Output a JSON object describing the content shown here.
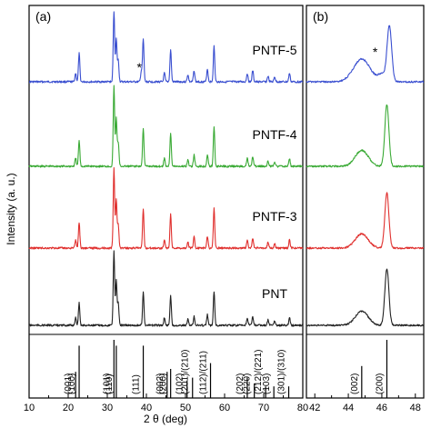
{
  "chart_data": [
    {
      "panel": "(a)",
      "type": "line",
      "xlabel": "2 θ (deg)",
      "ylabel": "Intensity (a. u.)",
      "xlim": [
        10,
        80
      ],
      "xticks": [
        10,
        20,
        30,
        40,
        50,
        60,
        70,
        80
      ],
      "series": [
        {
          "name": "PNTF-5",
          "color": "#3a4fd0",
          "peaks": [
            [
              21.9,
              0.12
            ],
            [
              22.8,
              0.4
            ],
            [
              31.7,
              1.0
            ],
            [
              32.3,
              0.6
            ],
            [
              32.8,
              0.3
            ],
            [
              38.7,
              0.15
            ],
            [
              39.2,
              0.6
            ],
            [
              44.6,
              0.12
            ],
            [
              46.2,
              0.45
            ],
            [
              50.6,
              0.1
            ],
            [
              52.2,
              0.16
            ],
            [
              55.6,
              0.18
            ],
            [
              57.3,
              0.5
            ],
            [
              65.8,
              0.12
            ],
            [
              67.2,
              0.16
            ],
            [
              71.1,
              0.08
            ],
            [
              72.8,
              0.07
            ],
            [
              76.6,
              0.12
            ]
          ],
          "marker": {
            "x": 38.2,
            "text": "*"
          }
        },
        {
          "name": "PNTF-4",
          "color": "#3aaa35",
          "peaks": [
            [
              21.9,
              0.1
            ],
            [
              22.8,
              0.32
            ],
            [
              31.7,
              1.0
            ],
            [
              32.3,
              0.6
            ],
            [
              32.8,
              0.3
            ],
            [
              39.2,
              0.48
            ],
            [
              44.6,
              0.1
            ],
            [
              46.2,
              0.42
            ],
            [
              50.6,
              0.08
            ],
            [
              52.2,
              0.14
            ],
            [
              55.6,
              0.15
            ],
            [
              57.3,
              0.5
            ],
            [
              65.8,
              0.1
            ],
            [
              67.2,
              0.12
            ],
            [
              71.1,
              0.07
            ],
            [
              72.8,
              0.06
            ],
            [
              76.6,
              0.1
            ]
          ]
        },
        {
          "name": "PNTF-3",
          "color": "#e0302e",
          "peaks": [
            [
              21.9,
              0.1
            ],
            [
              22.8,
              0.32
            ],
            [
              31.7,
              1.0
            ],
            [
              32.3,
              0.6
            ],
            [
              32.8,
              0.3
            ],
            [
              39.2,
              0.48
            ],
            [
              44.6,
              0.1
            ],
            [
              46.2,
              0.42
            ],
            [
              50.6,
              0.08
            ],
            [
              52.2,
              0.14
            ],
            [
              55.6,
              0.15
            ],
            [
              57.3,
              0.5
            ],
            [
              65.8,
              0.1
            ],
            [
              67.2,
              0.12
            ],
            [
              71.1,
              0.07
            ],
            [
              72.8,
              0.06
            ],
            [
              76.6,
              0.1
            ]
          ]
        },
        {
          "name": "PNT",
          "color": "#222222",
          "peaks": [
            [
              21.9,
              0.1
            ],
            [
              22.8,
              0.3
            ],
            [
              31.7,
              1.0
            ],
            [
              32.3,
              0.6
            ],
            [
              32.8,
              0.3
            ],
            [
              39.2,
              0.45
            ],
            [
              44.6,
              0.1
            ],
            [
              46.2,
              0.4
            ],
            [
              50.6,
              0.08
            ],
            [
              52.2,
              0.12
            ],
            [
              55.6,
              0.14
            ],
            [
              57.3,
              0.46
            ],
            [
              65.8,
              0.1
            ],
            [
              67.2,
              0.12
            ],
            [
              71.1,
              0.07
            ],
            [
              72.8,
              0.06
            ],
            [
              76.6,
              0.1
            ]
          ]
        }
      ],
      "reference": [
        {
          "x": 21.9,
          "label": "(001)",
          "h": 0.45
        },
        {
          "x": 22.8,
          "label": "(100)",
          "h": 0.9
        },
        {
          "x": 31.7,
          "label": "(101)",
          "h": 1.0
        },
        {
          "x": 32.3,
          "label": "(110)",
          "h": 0.9
        },
        {
          "x": 39.2,
          "label": "(111)",
          "h": 0.9
        },
        {
          "x": 45.3,
          "label": "(002)",
          "h": 0.45
        },
        {
          "x": 46.2,
          "label": "(200)",
          "h": 0.5
        },
        {
          "x": 50.4,
          "label": "(102)",
          "h": 0.3
        },
        {
          "x": 51.8,
          "label": "(201)/(210)",
          "h": 0.35
        },
        {
          "x": 56.4,
          "label": "(112)/(211)",
          "h": 0.6
        },
        {
          "x": 65.8,
          "label": "(202)",
          "h": 0.35
        },
        {
          "x": 67.6,
          "label": "(220)",
          "h": 0.25
        },
        {
          "x": 70.5,
          "label": "(212)/(221)",
          "h": 0.2
        },
        {
          "x": 72.6,
          "label": "(103)",
          "h": 0.2
        },
        {
          "x": 76.4,
          "label": "(301)/(310)",
          "h": 0.2
        }
      ]
    },
    {
      "panel": "(b)",
      "type": "line",
      "xlabel": "",
      "ylabel": "",
      "xlim": [
        41.5,
        48.5
      ],
      "xticks": [
        42,
        44,
        46,
        48
      ],
      "series": [
        {
          "name": "PNTF-5",
          "color": "#3a4fd0",
          "peaks": [
            [
              44.8,
              0.32,
              0.9
            ],
            [
              46.0,
              0.1,
              0.4
            ],
            [
              46.45,
              0.78,
              0.25
            ]
          ],
          "marker": {
            "x": 45.6,
            "text": "*"
          }
        },
        {
          "name": "PNTF-4",
          "color": "#3aaa35",
          "peaks": [
            [
              44.8,
              0.22,
              0.7
            ],
            [
              46.3,
              0.85,
              0.22
            ]
          ]
        },
        {
          "name": "PNTF-3",
          "color": "#e0302e",
          "peaks": [
            [
              44.8,
              0.2,
              0.7
            ],
            [
              46.3,
              0.78,
              0.22
            ]
          ]
        },
        {
          "name": "PNT",
          "color": "#222222",
          "peaks": [
            [
              44.8,
              0.2,
              0.7
            ],
            [
              46.3,
              0.8,
              0.22
            ]
          ]
        }
      ],
      "reference": [
        {
          "x": 44.8,
          "label": "(002)",
          "h": 0.55
        },
        {
          "x": 46.3,
          "label": "(200)",
          "h": 1.0
        }
      ]
    }
  ]
}
